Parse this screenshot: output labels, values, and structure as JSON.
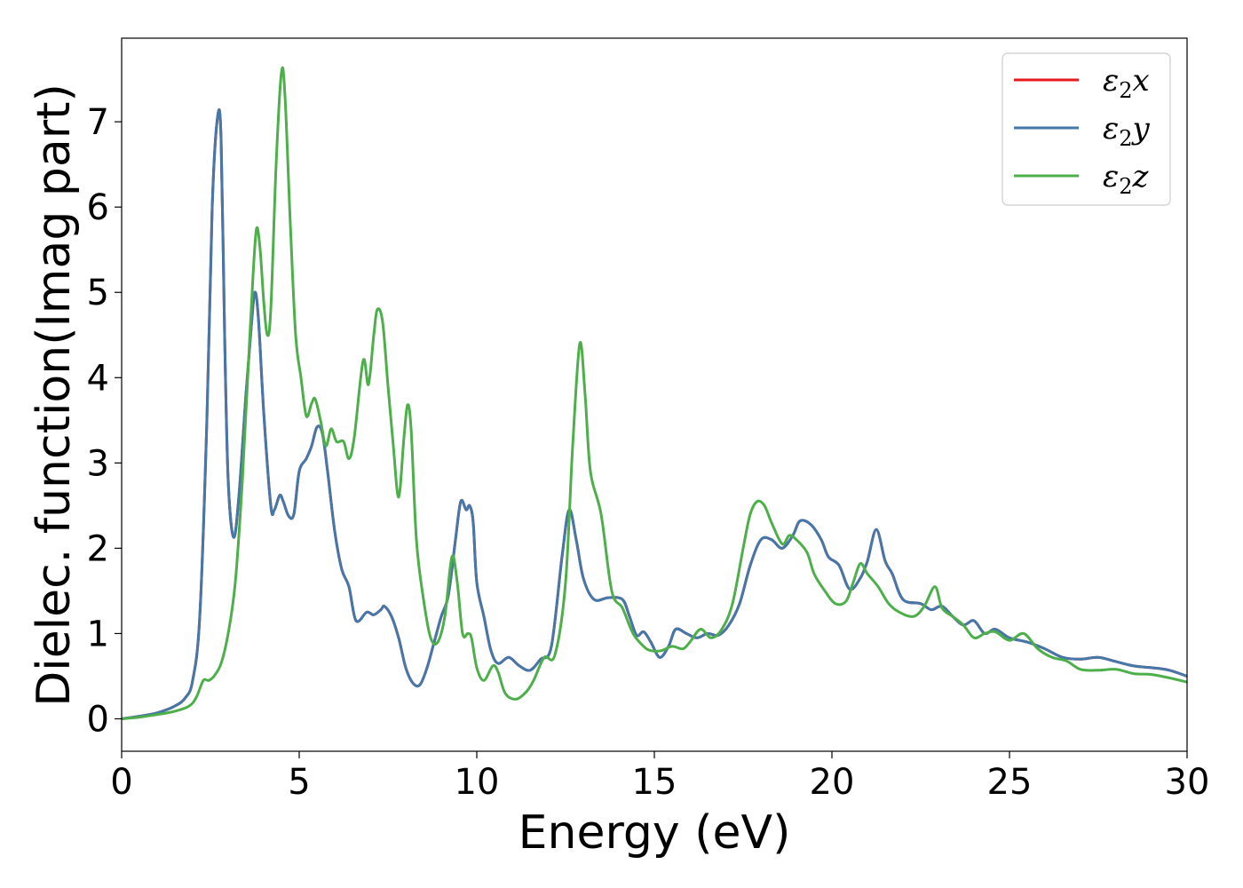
{
  "chart_data": {
    "type": "line",
    "title": "",
    "xlabel": "Energy (eV)",
    "ylabel": "Dielec. function(Imag part)",
    "xlim": [
      0,
      30
    ],
    "ylim": [
      -0.38,
      7.98
    ],
    "xticks": [
      0,
      5,
      10,
      15,
      20,
      25,
      30
    ],
    "yticks": [
      0,
      1,
      2,
      3,
      4,
      5,
      6,
      7
    ],
    "grid": false,
    "legend_position": "top-right",
    "series": [
      {
        "name": "ε2x",
        "legend_main": "ε",
        "legend_sub": "2",
        "legend_suffix": "x",
        "color": "#e41a1c",
        "same_as": "ε2y"
      },
      {
        "name": "ε2y",
        "legend_main": "ε",
        "legend_sub": "2",
        "legend_suffix": "y",
        "color": "#4477aa",
        "points": [
          [
            0,
            0.0
          ],
          [
            0.5,
            0.03
          ],
          [
            1.0,
            0.07
          ],
          [
            1.5,
            0.15
          ],
          [
            1.8,
            0.25
          ],
          [
            2.0,
            0.45
          ],
          [
            2.2,
            1.2
          ],
          [
            2.4,
            3.5
          ],
          [
            2.55,
            6.0
          ],
          [
            2.7,
            7.05
          ],
          [
            2.8,
            6.8
          ],
          [
            2.9,
            4.5
          ],
          [
            3.0,
            2.8
          ],
          [
            3.15,
            2.13
          ],
          [
            3.3,
            2.6
          ],
          [
            3.5,
            3.8
          ],
          [
            3.65,
            4.6
          ],
          [
            3.75,
            5.0
          ],
          [
            3.85,
            4.7
          ],
          [
            4.0,
            3.6
          ],
          [
            4.2,
            2.5
          ],
          [
            4.3,
            2.45
          ],
          [
            4.45,
            2.62
          ],
          [
            4.55,
            2.55
          ],
          [
            4.7,
            2.38
          ],
          [
            4.85,
            2.4
          ],
          [
            5.0,
            2.9
          ],
          [
            5.2,
            3.05
          ],
          [
            5.35,
            3.2
          ],
          [
            5.5,
            3.42
          ],
          [
            5.65,
            3.35
          ],
          [
            5.8,
            2.9
          ],
          [
            6.0,
            2.2
          ],
          [
            6.2,
            1.75
          ],
          [
            6.4,
            1.55
          ],
          [
            6.6,
            1.15
          ],
          [
            6.9,
            1.25
          ],
          [
            7.1,
            1.22
          ],
          [
            7.3,
            1.28
          ],
          [
            7.4,
            1.32
          ],
          [
            7.6,
            1.2
          ],
          [
            7.8,
            0.95
          ],
          [
            8.0,
            0.6
          ],
          [
            8.2,
            0.42
          ],
          [
            8.4,
            0.4
          ],
          [
            8.6,
            0.6
          ],
          [
            8.8,
            0.9
          ],
          [
            9.0,
            1.2
          ],
          [
            9.2,
            1.45
          ],
          [
            9.4,
            2.1
          ],
          [
            9.55,
            2.55
          ],
          [
            9.7,
            2.45
          ],
          [
            9.8,
            2.5
          ],
          [
            9.9,
            2.3
          ],
          [
            10.0,
            1.6
          ],
          [
            10.2,
            1.2
          ],
          [
            10.4,
            0.8
          ],
          [
            10.6,
            0.65
          ],
          [
            10.9,
            0.72
          ],
          [
            11.2,
            0.62
          ],
          [
            11.5,
            0.57
          ],
          [
            11.8,
            0.7
          ],
          [
            12.1,
            0.85
          ],
          [
            12.4,
            1.9
          ],
          [
            12.6,
            2.45
          ],
          [
            12.8,
            2.1
          ],
          [
            13.0,
            1.65
          ],
          [
            13.3,
            1.4
          ],
          [
            13.7,
            1.42
          ],
          [
            14.1,
            1.4
          ],
          [
            14.3,
            1.2
          ],
          [
            14.5,
            0.98
          ],
          [
            14.7,
            1.02
          ],
          [
            14.9,
            0.9
          ],
          [
            15.15,
            0.72
          ],
          [
            15.4,
            0.85
          ],
          [
            15.6,
            1.05
          ],
          [
            15.9,
            1.0
          ],
          [
            16.2,
            0.95
          ],
          [
            16.5,
            1.0
          ],
          [
            16.8,
            0.98
          ],
          [
            17.1,
            1.1
          ],
          [
            17.4,
            1.35
          ],
          [
            17.7,
            1.8
          ],
          [
            18.0,
            2.1
          ],
          [
            18.3,
            2.1
          ],
          [
            18.6,
            2.0
          ],
          [
            18.9,
            2.15
          ],
          [
            19.1,
            2.32
          ],
          [
            19.4,
            2.28
          ],
          [
            19.7,
            2.1
          ],
          [
            19.9,
            1.9
          ],
          [
            20.2,
            1.8
          ],
          [
            20.5,
            1.52
          ],
          [
            20.8,
            1.65
          ],
          [
            21.0,
            1.85
          ],
          [
            21.25,
            2.22
          ],
          [
            21.5,
            1.85
          ],
          [
            21.7,
            1.7
          ],
          [
            22.0,
            1.4
          ],
          [
            22.5,
            1.35
          ],
          [
            22.8,
            1.28
          ],
          [
            23.1,
            1.32
          ],
          [
            23.4,
            1.2
          ],
          [
            23.7,
            1.1
          ],
          [
            24.0,
            1.15
          ],
          [
            24.3,
            1.0
          ],
          [
            24.6,
            1.05
          ],
          [
            25.0,
            0.95
          ],
          [
            25.5,
            0.9
          ],
          [
            26.0,
            0.82
          ],
          [
            26.5,
            0.72
          ],
          [
            27.0,
            0.7
          ],
          [
            27.5,
            0.72
          ],
          [
            28.0,
            0.67
          ],
          [
            28.5,
            0.62
          ],
          [
            29.0,
            0.6
          ],
          [
            29.5,
            0.57
          ],
          [
            30.0,
            0.5
          ]
        ]
      },
      {
        "name": "ε2z",
        "legend_main": "ε",
        "legend_sub": "2",
        "legend_suffix": "z",
        "color": "#4daf4a",
        "points": [
          [
            0,
            0.0
          ],
          [
            0.5,
            0.02
          ],
          [
            1.0,
            0.05
          ],
          [
            1.5,
            0.09
          ],
          [
            1.9,
            0.15
          ],
          [
            2.1,
            0.25
          ],
          [
            2.3,
            0.45
          ],
          [
            2.45,
            0.45
          ],
          [
            2.6,
            0.5
          ],
          [
            2.8,
            0.65
          ],
          [
            3.0,
            1.0
          ],
          [
            3.2,
            1.6
          ],
          [
            3.4,
            2.8
          ],
          [
            3.55,
            4.0
          ],
          [
            3.7,
            5.2
          ],
          [
            3.8,
            5.75
          ],
          [
            3.9,
            5.5
          ],
          [
            4.0,
            4.9
          ],
          [
            4.1,
            4.5
          ],
          [
            4.2,
            4.8
          ],
          [
            4.35,
            6.5
          ],
          [
            4.5,
            7.58
          ],
          [
            4.6,
            7.3
          ],
          [
            4.75,
            5.8
          ],
          [
            4.9,
            4.5
          ],
          [
            5.05,
            4.0
          ],
          [
            5.2,
            3.55
          ],
          [
            5.35,
            3.7
          ],
          [
            5.45,
            3.75
          ],
          [
            5.6,
            3.5
          ],
          [
            5.75,
            3.2
          ],
          [
            5.9,
            3.4
          ],
          [
            6.05,
            3.25
          ],
          [
            6.25,
            3.25
          ],
          [
            6.4,
            3.05
          ],
          [
            6.55,
            3.3
          ],
          [
            6.8,
            4.2
          ],
          [
            6.95,
            3.92
          ],
          [
            7.1,
            4.5
          ],
          [
            7.2,
            4.8
          ],
          [
            7.35,
            4.65
          ],
          [
            7.5,
            3.9
          ],
          [
            7.65,
            3.2
          ],
          [
            7.8,
            2.6
          ],
          [
            7.95,
            3.3
          ],
          [
            8.05,
            3.68
          ],
          [
            8.15,
            3.4
          ],
          [
            8.3,
            2.1
          ],
          [
            8.5,
            1.4
          ],
          [
            8.7,
            0.95
          ],
          [
            8.9,
            0.9
          ],
          [
            9.1,
            1.2
          ],
          [
            9.3,
            1.9
          ],
          [
            9.45,
            1.6
          ],
          [
            9.6,
            1.0
          ],
          [
            9.75,
            1.0
          ],
          [
            9.85,
            0.95
          ],
          [
            10.0,
            0.6
          ],
          [
            10.2,
            0.45
          ],
          [
            10.45,
            0.62
          ],
          [
            10.6,
            0.55
          ],
          [
            10.8,
            0.3
          ],
          [
            11.1,
            0.23
          ],
          [
            11.4,
            0.32
          ],
          [
            11.6,
            0.45
          ],
          [
            11.9,
            0.72
          ],
          [
            12.2,
            0.75
          ],
          [
            12.5,
            1.6
          ],
          [
            12.7,
            3.2
          ],
          [
            12.9,
            4.4
          ],
          [
            13.05,
            3.8
          ],
          [
            13.2,
            2.9
          ],
          [
            13.5,
            2.4
          ],
          [
            13.8,
            1.5
          ],
          [
            14.1,
            1.3
          ],
          [
            14.4,
            1.0
          ],
          [
            14.7,
            0.85
          ],
          [
            14.9,
            0.8
          ],
          [
            15.2,
            0.8
          ],
          [
            15.5,
            0.85
          ],
          [
            15.8,
            0.82
          ],
          [
            16.0,
            0.9
          ],
          [
            16.3,
            1.05
          ],
          [
            16.6,
            0.95
          ],
          [
            16.9,
            1.05
          ],
          [
            17.2,
            1.35
          ],
          [
            17.5,
            2.0
          ],
          [
            17.7,
            2.4
          ],
          [
            17.9,
            2.55
          ],
          [
            18.1,
            2.5
          ],
          [
            18.3,
            2.3
          ],
          [
            18.6,
            2.05
          ],
          [
            18.8,
            2.15
          ],
          [
            19.0,
            2.1
          ],
          [
            19.3,
            1.95
          ],
          [
            19.5,
            1.7
          ],
          [
            19.8,
            1.5
          ],
          [
            20.1,
            1.35
          ],
          [
            20.4,
            1.38
          ],
          [
            20.6,
            1.6
          ],
          [
            20.8,
            1.82
          ],
          [
            21.0,
            1.7
          ],
          [
            21.3,
            1.55
          ],
          [
            21.6,
            1.35
          ],
          [
            21.9,
            1.25
          ],
          [
            22.3,
            1.2
          ],
          [
            22.6,
            1.32
          ],
          [
            22.9,
            1.55
          ],
          [
            23.1,
            1.3
          ],
          [
            23.4,
            1.2
          ],
          [
            23.7,
            1.1
          ],
          [
            24.0,
            0.95
          ],
          [
            24.3,
            1.0
          ],
          [
            24.6,
            1.02
          ],
          [
            25.0,
            0.92
          ],
          [
            25.4,
            1.0
          ],
          [
            25.8,
            0.82
          ],
          [
            26.2,
            0.72
          ],
          [
            26.6,
            0.68
          ],
          [
            27.0,
            0.58
          ],
          [
            27.5,
            0.57
          ],
          [
            28.0,
            0.58
          ],
          [
            28.5,
            0.53
          ],
          [
            29.0,
            0.52
          ],
          [
            29.5,
            0.48
          ],
          [
            30.0,
            0.43
          ]
        ]
      }
    ]
  }
}
